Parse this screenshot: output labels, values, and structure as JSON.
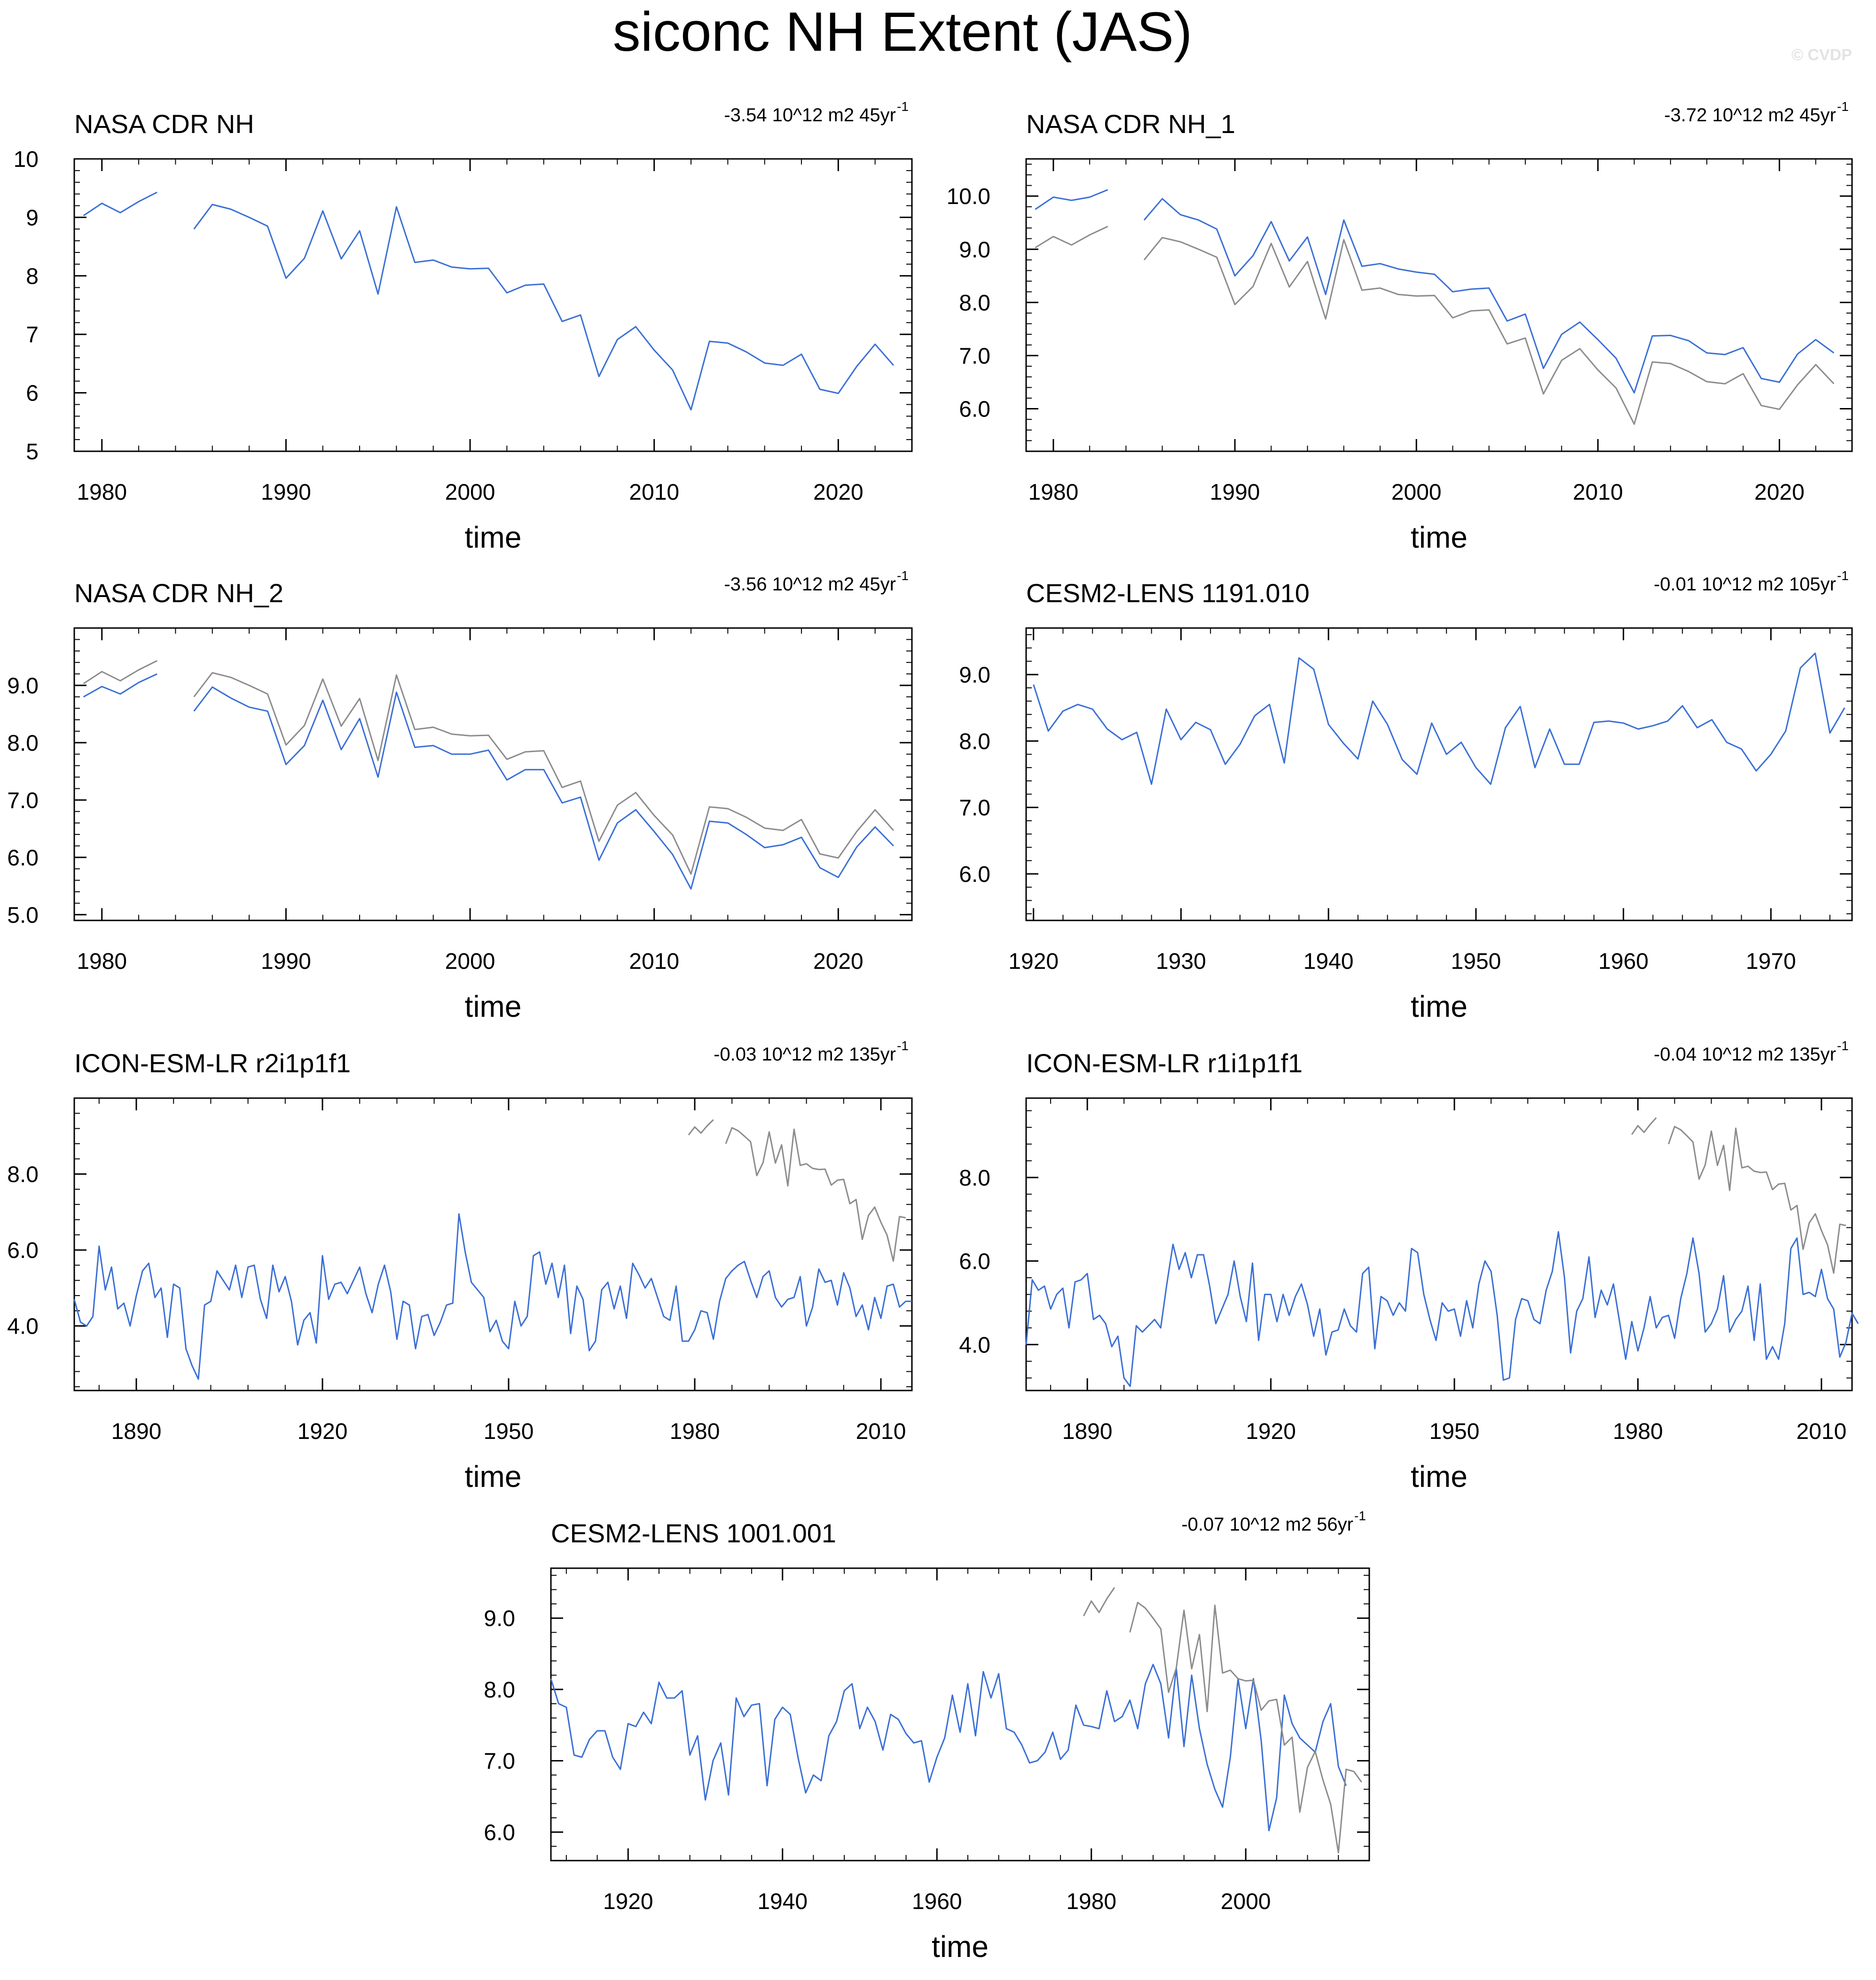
{
  "figure_title": "siconc NH Extent (JAS)",
  "watermark": "© CVDP",
  "colors": {
    "model": "#3a6fd6",
    "obs": "#8c8c8c",
    "axis": "#000000"
  },
  "chart_data": [
    {
      "type": "line",
      "title": "NASA CDR NH",
      "trend_text": "-3.54 10^12 m2 45yr",
      "trend_sup": "-1",
      "xlabel": "time",
      "xlim": [
        1978.5,
        2024
      ],
      "ylim": [
        5,
        10
      ],
      "xticks": [
        1980,
        1990,
        2000,
        2010,
        2020
      ],
      "yticks": [
        5,
        6,
        7,
        8,
        9,
        10
      ],
      "ytick_labels": [
        "5",
        "6",
        "7",
        "8",
        "9",
        "10"
      ],
      "series": [
        {
          "name": "NASA CDR NH",
          "color_key": "model",
          "x_start": 1979,
          "values": [
            9.03,
            9.24,
            9.08,
            9.27,
            9.43,
            null,
            8.8,
            9.22,
            9.14,
            9.0,
            8.85,
            7.96,
            8.3,
            9.11,
            8.29,
            8.77,
            7.69,
            9.18,
            8.23,
            8.27,
            8.15,
            8.12,
            8.13,
            7.71,
            7.84,
            7.86,
            7.22,
            7.33,
            6.28,
            6.91,
            7.13,
            6.73,
            6.39,
            5.71,
            6.88,
            6.85,
            6.7,
            6.51,
            6.47,
            6.66,
            6.06,
            5.99,
            6.45,
            6.83,
            6.47
          ]
        }
      ]
    },
    {
      "type": "line",
      "title": "NASA CDR NH_1",
      "trend_text": "-3.72 10^12 m2 45yr",
      "trend_sup": "-1",
      "xlabel": "time",
      "xlim": [
        1978.5,
        2024
      ],
      "ylim": [
        5.2,
        10.7
      ],
      "xticks": [
        1980,
        1990,
        2000,
        2010,
        2020
      ],
      "yticks": [
        6,
        7,
        8,
        9,
        10
      ],
      "ytick_labels": [
        "6.0",
        "7.0",
        "8.0",
        "9.0",
        "10.0"
      ],
      "series": [
        {
          "name": "NASA CDR NH",
          "color_key": "obs",
          "x_start": 1979,
          "values": [
            9.03,
            9.24,
            9.08,
            9.27,
            9.43,
            null,
            8.8,
            9.22,
            9.14,
            9.0,
            8.85,
            7.96,
            8.3,
            9.11,
            8.29,
            8.77,
            7.69,
            9.18,
            8.23,
            8.27,
            8.15,
            8.12,
            8.13,
            7.71,
            7.84,
            7.86,
            7.22,
            7.33,
            6.28,
            6.91,
            7.13,
            6.73,
            6.39,
            5.71,
            6.88,
            6.85,
            6.7,
            6.51,
            6.47,
            6.66,
            6.06,
            5.99,
            6.45,
            6.83,
            6.47
          ]
        },
        {
          "name": "NASA CDR NH_1",
          "color_key": "model",
          "x_start": 1979,
          "values": [
            9.75,
            9.98,
            9.92,
            9.98,
            10.12,
            null,
            9.55,
            9.95,
            9.65,
            9.55,
            9.38,
            8.5,
            8.88,
            9.52,
            8.78,
            9.23,
            8.15,
            9.55,
            8.68,
            8.73,
            8.63,
            8.57,
            8.53,
            8.2,
            8.25,
            8.27,
            7.65,
            7.78,
            6.76,
            7.4,
            7.63,
            7.3,
            6.95,
            6.3,
            7.37,
            7.38,
            7.28,
            7.05,
            7.02,
            7.15,
            6.57,
            6.5,
            7.03,
            7.3,
            7.05
          ]
        }
      ]
    },
    {
      "type": "line",
      "title": "NASA CDR NH_2",
      "trend_text": "-3.56 10^12 m2 45yr",
      "trend_sup": "-1",
      "xlabel": "time",
      "xlim": [
        1978.5,
        2024
      ],
      "ylim": [
        4.9,
        10.0
      ],
      "xticks": [
        1980,
        1990,
        2000,
        2010,
        2020
      ],
      "yticks": [
        5,
        6,
        7,
        8,
        9
      ],
      "ytick_labels": [
        "5.0",
        "6.0",
        "7.0",
        "8.0",
        "9.0"
      ],
      "series": [
        {
          "name": "NASA CDR NH",
          "color_key": "obs",
          "x_start": 1979,
          "values": [
            9.03,
            9.24,
            9.08,
            9.27,
            9.43,
            null,
            8.8,
            9.22,
            9.14,
            9.0,
            8.85,
            7.96,
            8.3,
            9.11,
            8.29,
            8.77,
            7.69,
            9.18,
            8.23,
            8.27,
            8.15,
            8.12,
            8.13,
            7.71,
            7.84,
            7.86,
            7.22,
            7.33,
            6.28,
            6.91,
            7.13,
            6.73,
            6.39,
            5.71,
            6.88,
            6.85,
            6.7,
            6.51,
            6.47,
            6.66,
            6.06,
            5.99,
            6.45,
            6.83,
            6.47
          ]
        },
        {
          "name": "NASA CDR NH_2",
          "color_key": "model",
          "x_start": 1979,
          "values": [
            8.8,
            8.98,
            8.85,
            9.05,
            9.2,
            null,
            8.55,
            8.97,
            8.78,
            8.62,
            8.55,
            7.62,
            7.95,
            8.74,
            7.88,
            8.42,
            7.4,
            8.88,
            7.92,
            7.95,
            7.8,
            7.8,
            7.87,
            7.35,
            7.53,
            7.53,
            6.95,
            7.05,
            5.95,
            6.6,
            6.83,
            6.45,
            6.05,
            5.45,
            6.63,
            6.6,
            6.4,
            6.17,
            6.22,
            6.35,
            5.82,
            5.65,
            6.18,
            6.53,
            6.2
          ]
        }
      ]
    },
    {
      "type": "line",
      "title": "CESM2-LENS 1191.010",
      "trend_text": "-0.01 10^12 m2 105yr",
      "trend_sup": "-1",
      "xlabel": "time",
      "xlim": [
        1919.5,
        1975.5
      ],
      "ylim": [
        5.3,
        9.7
      ],
      "xticks": [
        1920,
        1930,
        1940,
        1950,
        1960,
        1970
      ],
      "yticks": [
        6,
        7,
        8,
        9
      ],
      "ytick_labels": [
        "6.0",
        "7.0",
        "8.0",
        "9.0"
      ],
      "series": [
        {
          "name": "CESM2-LENS 1191.010",
          "color_key": "model",
          "x_start": 1920,
          "values": [
            8.85,
            8.15,
            8.45,
            8.55,
            8.48,
            8.18,
            8.02,
            8.13,
            7.35,
            8.48,
            8.02,
            8.28,
            8.17,
            7.65,
            7.95,
            8.38,
            8.55,
            7.67,
            9.25,
            9.08,
            8.25,
            7.97,
            7.73,
            8.6,
            8.25,
            7.72,
            7.5,
            8.27,
            7.8,
            7.98,
            7.6,
            7.35,
            8.2,
            8.52,
            7.6,
            8.18,
            7.65,
            7.65,
            8.28,
            8.3,
            8.27,
            8.18,
            8.23,
            8.3,
            8.53,
            8.2,
            8.32,
            7.98,
            7.88,
            7.55,
            7.8,
            8.15,
            9.1,
            9.32,
            8.12,
            8.5
          ]
        }
      ]
    },
    {
      "type": "line",
      "title": "ICON-ESM-LR r2i1p1f1",
      "trend_text": "-0.03 10^12 m2 135yr",
      "trend_sup": "-1",
      "xlabel": "time",
      "xlim": [
        1880,
        2015
      ],
      "ylim": [
        2.3,
        10.0
      ],
      "xticks": [
        1890,
        1920,
        1950,
        1980,
        2010
      ],
      "yticks": [
        4,
        6,
        8
      ],
      "ytick_labels": [
        "4.0",
        "6.0",
        "8.0"
      ],
      "series": [
        {
          "name": "ICON-ESM-LR r2i1p1f1",
          "color_key": "model",
          "x_start": 1880,
          "values": [
            4.7,
            4.1,
            4.0,
            4.25,
            6.1,
            4.95,
            5.55,
            4.45,
            4.6,
            4.0,
            4.8,
            5.45,
            5.65,
            4.75,
            5.0,
            3.7,
            5.1,
            5.0,
            3.4,
            2.95,
            2.6,
            4.55,
            4.65,
            5.45,
            5.2,
            4.95,
            5.6,
            4.75,
            5.55,
            5.6,
            4.7,
            4.2,
            5.6,
            4.9,
            5.3,
            4.65,
            3.5,
            4.15,
            4.35,
            3.55,
            5.85,
            4.7,
            5.1,
            5.15,
            4.85,
            5.2,
            5.55,
            4.85,
            4.35,
            5.1,
            5.6,
            4.9,
            3.65,
            4.65,
            4.55,
            3.4,
            4.25,
            4.3,
            3.75,
            4.1,
            4.55,
            4.6,
            6.95,
            5.95,
            5.15,
            4.95,
            4.75,
            3.85,
            4.15,
            3.6,
            3.4,
            4.65,
            4.0,
            4.25,
            5.85,
            5.95,
            5.1,
            5.65,
            4.75,
            5.6,
            3.8,
            5.05,
            4.7,
            3.35,
            3.6,
            4.95,
            5.15,
            4.45,
            5.05,
            4.2,
            5.65,
            5.35,
            5.0,
            5.25,
            4.75,
            4.25,
            4.15,
            5.05,
            3.6,
            3.6,
            3.9,
            4.4,
            4.35,
            3.65,
            4.65,
            5.25,
            5.45,
            5.6,
            5.7,
            5.2,
            4.75,
            5.3,
            5.45,
            4.75,
            4.5,
            4.7,
            4.75,
            5.3,
            4.0,
            4.5,
            5.5,
            5.15,
            5.2,
            4.55,
            5.4,
            5.0,
            4.25,
            4.55,
            3.9,
            4.75,
            4.2,
            5.05,
            5.1,
            4.5,
            4.65,
            4.65
          ]
        },
        {
          "name": "NASA CDR NH",
          "color_key": "obs",
          "x_start": 1979,
          "values": [
            9.03,
            9.24,
            9.08,
            9.27,
            9.43,
            null,
            8.8,
            9.22,
            9.14,
            9.0,
            8.85,
            7.96,
            8.3,
            9.11,
            8.29,
            8.77,
            7.69,
            9.18,
            8.23,
            8.27,
            8.15,
            8.12,
            8.13,
            7.71,
            7.84,
            7.86,
            7.22,
            7.33,
            6.28,
            6.91,
            7.13,
            6.73,
            6.39,
            5.71,
            6.88,
            6.85
          ]
        }
      ]
    },
    {
      "type": "line",
      "title": "ICON-ESM-LR r1i1p1f1",
      "trend_text": "-0.04 10^12 m2 135yr",
      "trend_sup": "-1",
      "xlabel": "time",
      "xlim": [
        1880,
        2015
      ],
      "ylim": [
        2.9,
        9.9
      ],
      "xticks": [
        1890,
        1920,
        1950,
        1980,
        2010
      ],
      "yticks": [
        4,
        6,
        8
      ],
      "ytick_labels": [
        "4.0",
        "6.0",
        "8.0"
      ],
      "series": [
        {
          "name": "ICON-ESM-LR r1i1p1f1",
          "color_key": "model",
          "x_start": 1880,
          "values": [
            4.0,
            5.55,
            5.3,
            5.4,
            4.85,
            5.2,
            5.35,
            4.4,
            5.5,
            5.55,
            5.7,
            4.6,
            4.7,
            4.5,
            3.95,
            4.2,
            3.2,
            3.0,
            4.45,
            4.3,
            4.45,
            4.6,
            4.4,
            5.45,
            6.4,
            5.8,
            6.2,
            5.6,
            6.15,
            6.15,
            5.4,
            4.5,
            4.85,
            5.2,
            6.0,
            5.15,
            4.55,
            5.95,
            4.1,
            5.2,
            5.2,
            4.55,
            5.2,
            4.7,
            5.15,
            5.45,
            4.95,
            4.2,
            4.85,
            3.75,
            4.3,
            4.35,
            4.85,
            4.45,
            4.3,
            5.7,
            5.85,
            3.9,
            5.15,
            5.05,
            4.7,
            5.0,
            4.8,
            6.3,
            6.2,
            5.2,
            4.6,
            4.1,
            5.0,
            4.8,
            4.85,
            4.2,
            5.05,
            4.4,
            5.45,
            6.0,
            5.75,
            4.7,
            3.15,
            3.2,
            4.6,
            5.1,
            5.05,
            4.6,
            4.5,
            5.3,
            5.75,
            6.7,
            5.6,
            3.8,
            4.8,
            5.1,
            6.1,
            4.65,
            5.3,
            4.95,
            5.45,
            4.55,
            3.65,
            4.55,
            3.85,
            4.4,
            5.15,
            4.4,
            4.65,
            4.7,
            4.15,
            5.1,
            5.7,
            6.55,
            5.7,
            4.3,
            4.5,
            4.85,
            5.65,
            4.3,
            4.6,
            4.8,
            5.4,
            4.1,
            5.45,
            3.65,
            3.95,
            3.65,
            4.5,
            6.3,
            6.55,
            5.2,
            5.25,
            5.15,
            5.8,
            5.1,
            4.85,
            3.7,
            4.05,
            4.75,
            4.5
          ]
        },
        {
          "name": "NASA CDR NH",
          "color_key": "obs",
          "x_start": 1979,
          "values": [
            9.03,
            9.24,
            9.08,
            9.27,
            9.43,
            null,
            8.8,
            9.22,
            9.14,
            9.0,
            8.85,
            7.96,
            8.3,
            9.11,
            8.29,
            8.77,
            7.69,
            9.18,
            8.23,
            8.27,
            8.15,
            8.12,
            8.13,
            7.71,
            7.84,
            7.86,
            7.22,
            7.33,
            6.28,
            6.91,
            7.13,
            6.73,
            6.39,
            5.71,
            6.88,
            6.85
          ]
        }
      ]
    },
    {
      "type": "line",
      "title": "CESM2-LENS 1001.001",
      "trend_text": "-0.07 10^12 m2 56yr",
      "trend_sup": "-1",
      "xlabel": "time",
      "xlim": [
        1910,
        2016
      ],
      "ylim": [
        5.6,
        9.7
      ],
      "xticks": [
        1920,
        1940,
        1960,
        1980,
        2000
      ],
      "yticks": [
        6,
        7,
        8,
        9
      ],
      "ytick_labels": [
        "6.0",
        "7.0",
        "8.0",
        "9.0"
      ],
      "series": [
        {
          "name": "CESM2-LENS 1001.001",
          "color_key": "model",
          "x_start": 1910,
          "values": [
            8.15,
            7.8,
            7.75,
            7.08,
            7.05,
            7.3,
            7.42,
            7.42,
            7.05,
            6.88,
            7.52,
            7.48,
            7.68,
            7.52,
            8.1,
            7.88,
            7.88,
            7.98,
            7.08,
            7.35,
            6.45,
            7.0,
            7.25,
            6.52,
            7.88,
            7.62,
            7.78,
            7.8,
            6.65,
            7.58,
            7.75,
            7.65,
            7.05,
            6.55,
            6.8,
            6.72,
            7.35,
            7.55,
            7.98,
            8.08,
            7.45,
            7.75,
            7.55,
            7.15,
            7.65,
            7.58,
            7.38,
            7.25,
            7.28,
            6.7,
            7.05,
            7.32,
            7.92,
            7.4,
            8.08,
            7.35,
            8.25,
            7.88,
            8.22,
            7.45,
            7.4,
            7.22,
            6.97,
            7.0,
            7.12,
            7.4,
            7.02,
            7.15,
            7.78,
            7.5,
            7.48,
            7.45,
            7.98,
            7.55,
            7.62,
            7.85,
            7.45,
            8.08,
            8.35,
            8.08,
            7.32,
            8.3,
            7.2,
            8.2,
            7.45,
            6.95,
            6.6,
            6.35,
            7.05,
            8.15,
            7.45,
            8.15,
            7.28,
            6.02,
            6.48,
            7.92,
            7.52,
            7.32,
            7.22,
            7.12,
            7.55,
            7.8,
            6.92,
            6.65
          ]
        },
        {
          "name": "NASA CDR NH",
          "color_key": "obs",
          "x_start": 1979,
          "values": [
            9.03,
            9.24,
            9.08,
            9.27,
            9.43,
            null,
            8.8,
            9.22,
            9.14,
            9.0,
            8.85,
            7.96,
            8.3,
            9.11,
            8.29,
            8.77,
            7.69,
            9.18,
            8.23,
            8.27,
            8.15,
            8.12,
            8.13,
            7.71,
            7.84,
            7.86,
            7.22,
            7.33,
            6.28,
            6.91,
            7.13,
            6.73,
            6.39,
            5.71,
            6.88,
            6.85,
            6.7
          ]
        }
      ]
    }
  ]
}
